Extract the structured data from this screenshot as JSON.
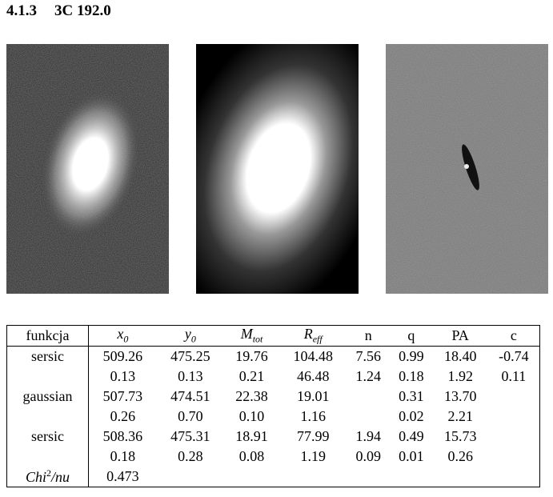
{
  "heading": {
    "number": "4.1.3",
    "title": "3C 192.0"
  },
  "table": {
    "header": [
      {
        "text": "funkcja"
      },
      {
        "text": "x",
        "sub": "0"
      },
      {
        "text": "y",
        "sub": "0"
      },
      {
        "text": "M",
        "sub": "tot"
      },
      {
        "text": "R",
        "sub": "eff"
      },
      {
        "text": "n"
      },
      {
        "text": "q"
      },
      {
        "text": "PA"
      },
      {
        "text": "c"
      }
    ],
    "rows": [
      [
        "sersic",
        "509.26",
        "475.25",
        "19.76",
        "104.48",
        "7.56",
        "0.99",
        "18.40",
        "-0.74"
      ],
      [
        null,
        "0.13",
        "0.13",
        "0.21",
        "46.48",
        "1.24",
        "0.18",
        "1.92",
        "0.11"
      ],
      [
        "gaussian",
        "507.73",
        "474.51",
        "22.38",
        "19.01",
        null,
        "0.31",
        "13.70",
        null
      ],
      [
        null,
        "0.26",
        "0.70",
        "0.10",
        "1.16",
        null,
        "0.02",
        "2.21",
        null
      ],
      [
        "sersic",
        "508.36",
        "475.31",
        "18.91",
        "77.99",
        "1.94",
        "0.49",
        "15.73",
        null
      ],
      [
        null,
        "0.18",
        "0.28",
        "0.08",
        "1.19",
        "0.09",
        "0.01",
        "0.26",
        null
      ],
      [
        {
          "text": "Chi",
          "sup": "2",
          "after": "/nu"
        },
        "0.473",
        null,
        null,
        null,
        null,
        null,
        null,
        null
      ]
    ]
  }
}
